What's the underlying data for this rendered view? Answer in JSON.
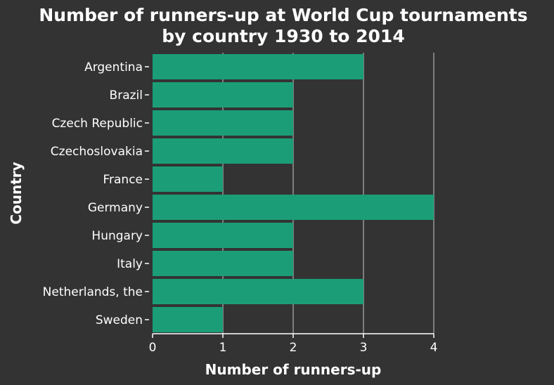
{
  "chart_data": {
    "type": "bar",
    "orientation": "horizontal",
    "title": [
      "Number of runners-up at World Cup tournaments",
      "by country 1930 to 2014"
    ],
    "xlabel": "Number of runners-up",
    "ylabel": "Country",
    "categories": [
      "Argentina",
      "Brazil",
      "Czech Republic",
      "Czechoslovakia",
      "France",
      "Germany",
      "Hungary",
      "Italy",
      "Netherlands, the",
      "Sweden"
    ],
    "values": [
      3,
      2,
      2,
      2,
      1,
      4,
      2,
      2,
      3,
      1
    ],
    "xlim": [
      0,
      4
    ],
    "xticks": [
      0,
      1,
      2,
      3,
      4
    ],
    "grid": "vertical",
    "legend": "none",
    "colors": {
      "background": "#333333",
      "bar": "#1b9e77",
      "grid": "#b0b0b0",
      "text": "#ffffff"
    }
  }
}
